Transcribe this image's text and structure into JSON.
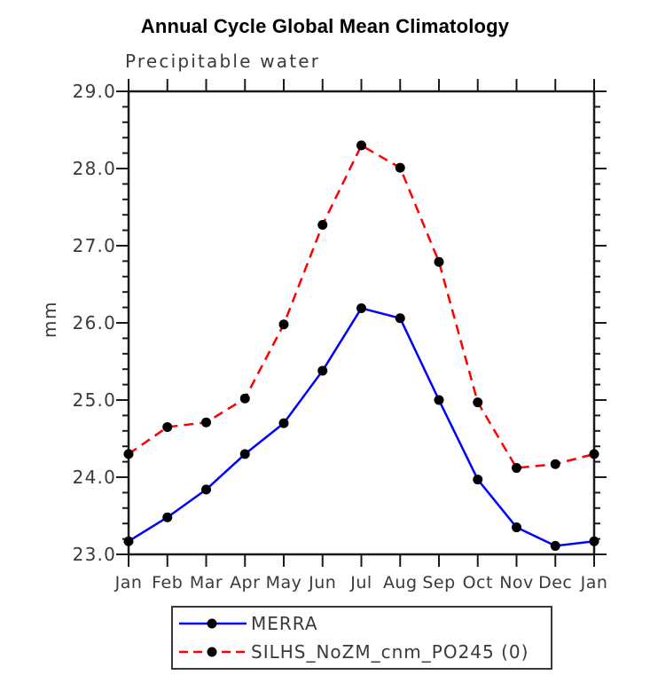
{
  "title": "Annual Cycle Global Mean Climatology",
  "subtitle": "Precipitable water",
  "ylabel": "mm",
  "colors": {
    "axis": "#1a1a1a",
    "tick_label": "#3a3a3a",
    "marker": "#000000",
    "merra_line": "#0000ff",
    "silhs_line": "#ff0000"
  },
  "legend": {
    "items": [
      {
        "label": "MERRA",
        "color": "#0000ff",
        "style": "solid",
        "marker": "black-dot"
      },
      {
        "label": "SILHS_NoZM_cnm_PO245 (0)",
        "color": "#ff0000",
        "style": "dashed",
        "marker": "black-dot"
      }
    ]
  },
  "chart_data": {
    "type": "line",
    "title": "Annual Cycle Global Mean Climatology",
    "subtitle": "Precipitable water",
    "xlabel": "",
    "ylabel": "mm",
    "categories": [
      "Jan",
      "Feb",
      "Mar",
      "Apr",
      "May",
      "Jun",
      "Jul",
      "Aug",
      "Sep",
      "Oct",
      "Nov",
      "Dec",
      "Jan"
    ],
    "series": [
      {
        "name": "MERRA",
        "color": "#0000ff",
        "dash": "solid",
        "marker": "circle",
        "values": [
          23.17,
          23.48,
          23.84,
          24.3,
          24.7,
          25.38,
          26.19,
          26.06,
          25.0,
          23.97,
          23.35,
          23.11,
          23.17
        ]
      },
      {
        "name": "SILHS_NoZM_cnm_PO245 (0)",
        "color": "#ff0000",
        "dash": "dashed",
        "marker": "circle",
        "values": [
          24.3,
          24.65,
          24.71,
          25.02,
          25.98,
          27.27,
          28.3,
          28.01,
          26.79,
          24.97,
          24.12,
          24.17,
          24.3
        ]
      }
    ],
    "ylim": [
      23.0,
      29.0
    ],
    "ytick_step": 1.0,
    "minor_step": 0.2,
    "ytick_labels": [
      "23.0",
      "24.0",
      "25.0",
      "26.0",
      "27.0",
      "28.0",
      "29.0"
    ],
    "grid": false,
    "legend_position": "bottom"
  }
}
